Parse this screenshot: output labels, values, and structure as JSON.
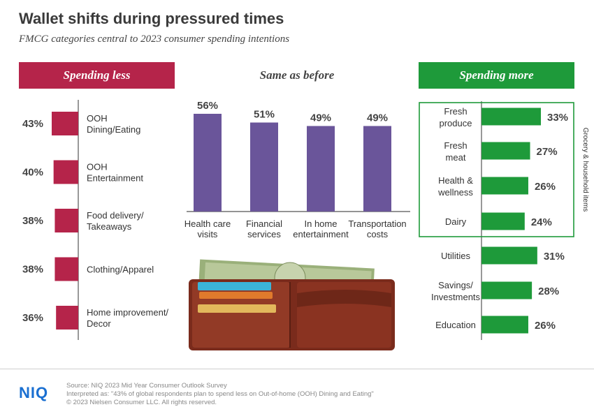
{
  "title": "Wallet shifts during pressured times",
  "subtitle": "FMCG categories central to 2023 consumer spending intentions",
  "colors": {
    "less": "#b5244a",
    "same": "#6a559a",
    "more": "#1e9a3a"
  },
  "chart_data": [
    {
      "type": "bar",
      "title": "Spending less",
      "orientation": "horizontal",
      "categories": [
        "OOH Dining/Eating",
        "OOH Entertainment",
        "Food delivery/ Takeaways",
        "Clothing/Apparel",
        "Home improvement/ Decor"
      ],
      "values": [
        43,
        40,
        38,
        38,
        36
      ],
      "value_labels": [
        "43%",
        "40%",
        "38%",
        "38%",
        "36%"
      ],
      "unit": "%"
    },
    {
      "type": "bar",
      "title": "Same as before",
      "orientation": "vertical",
      "categories": [
        "Health care visits",
        "Financial services",
        "In home entertainment",
        "Transportation costs"
      ],
      "values": [
        56,
        51,
        49,
        49
      ],
      "value_labels": [
        "56%",
        "51%",
        "49%",
        "49%"
      ],
      "unit": "%"
    },
    {
      "type": "bar",
      "title": "Spending more",
      "orientation": "horizontal",
      "categories": [
        "Fresh produce",
        "Fresh meat",
        "Health & wellness",
        "Dairy",
        "Utilities",
        "Savings/ Investments",
        "Education"
      ],
      "values": [
        33,
        27,
        26,
        24,
        31,
        28,
        26
      ],
      "value_labels": [
        "33%",
        "27%",
        "26%",
        "24%",
        "31%",
        "28%",
        "26%"
      ],
      "unit": "%",
      "group_label": "Grocery & household items",
      "group_members": [
        "Fresh produce",
        "Fresh meat",
        "Health & wellness",
        "Dairy"
      ]
    }
  ],
  "footer": {
    "logo": "NIQ",
    "source": "Source: NIQ 2023 Mid Year Consumer Outlook Survey",
    "note": "Interpreted as: \"43% of global respondents plan to spend less on Out-of-home (OOH) Dining and Eating\"",
    "copyright": "© 2023 Nielsen Consumer LLC. All rights reserved."
  }
}
